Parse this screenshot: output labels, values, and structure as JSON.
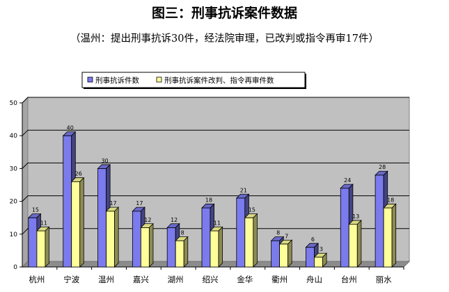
{
  "chart_data": {
    "type": "bar",
    "title": "图三：刑事抗诉案件数据",
    "subtitle": "（温州：提出刑事抗诉30件，经法院审理，已改判或指令再审17件）",
    "categories": [
      "杭州",
      "宁波",
      "温州",
      "嘉兴",
      "湖州",
      "绍兴",
      "金华",
      "衢州",
      "舟山",
      "台州",
      "丽水"
    ],
    "series": [
      {
        "name": "刑事抗诉件数",
        "values": [
          15,
          40,
          30,
          17,
          12,
          18,
          21,
          8,
          6,
          24,
          28
        ],
        "color": "#7b7bee"
      },
      {
        "name": "刑事抗诉案件改判、指令再审件数",
        "values": [
          11,
          26,
          17,
          12,
          8,
          11,
          15,
          7,
          3,
          13,
          18
        ],
        "color": "#ffff99"
      }
    ],
    "yticks": [
      0,
      10,
      20,
      30,
      40,
      50
    ],
    "ylim": [
      0,
      50
    ],
    "grid": true,
    "legend_position": "top-left",
    "wall_color": "#c0c0c0"
  }
}
